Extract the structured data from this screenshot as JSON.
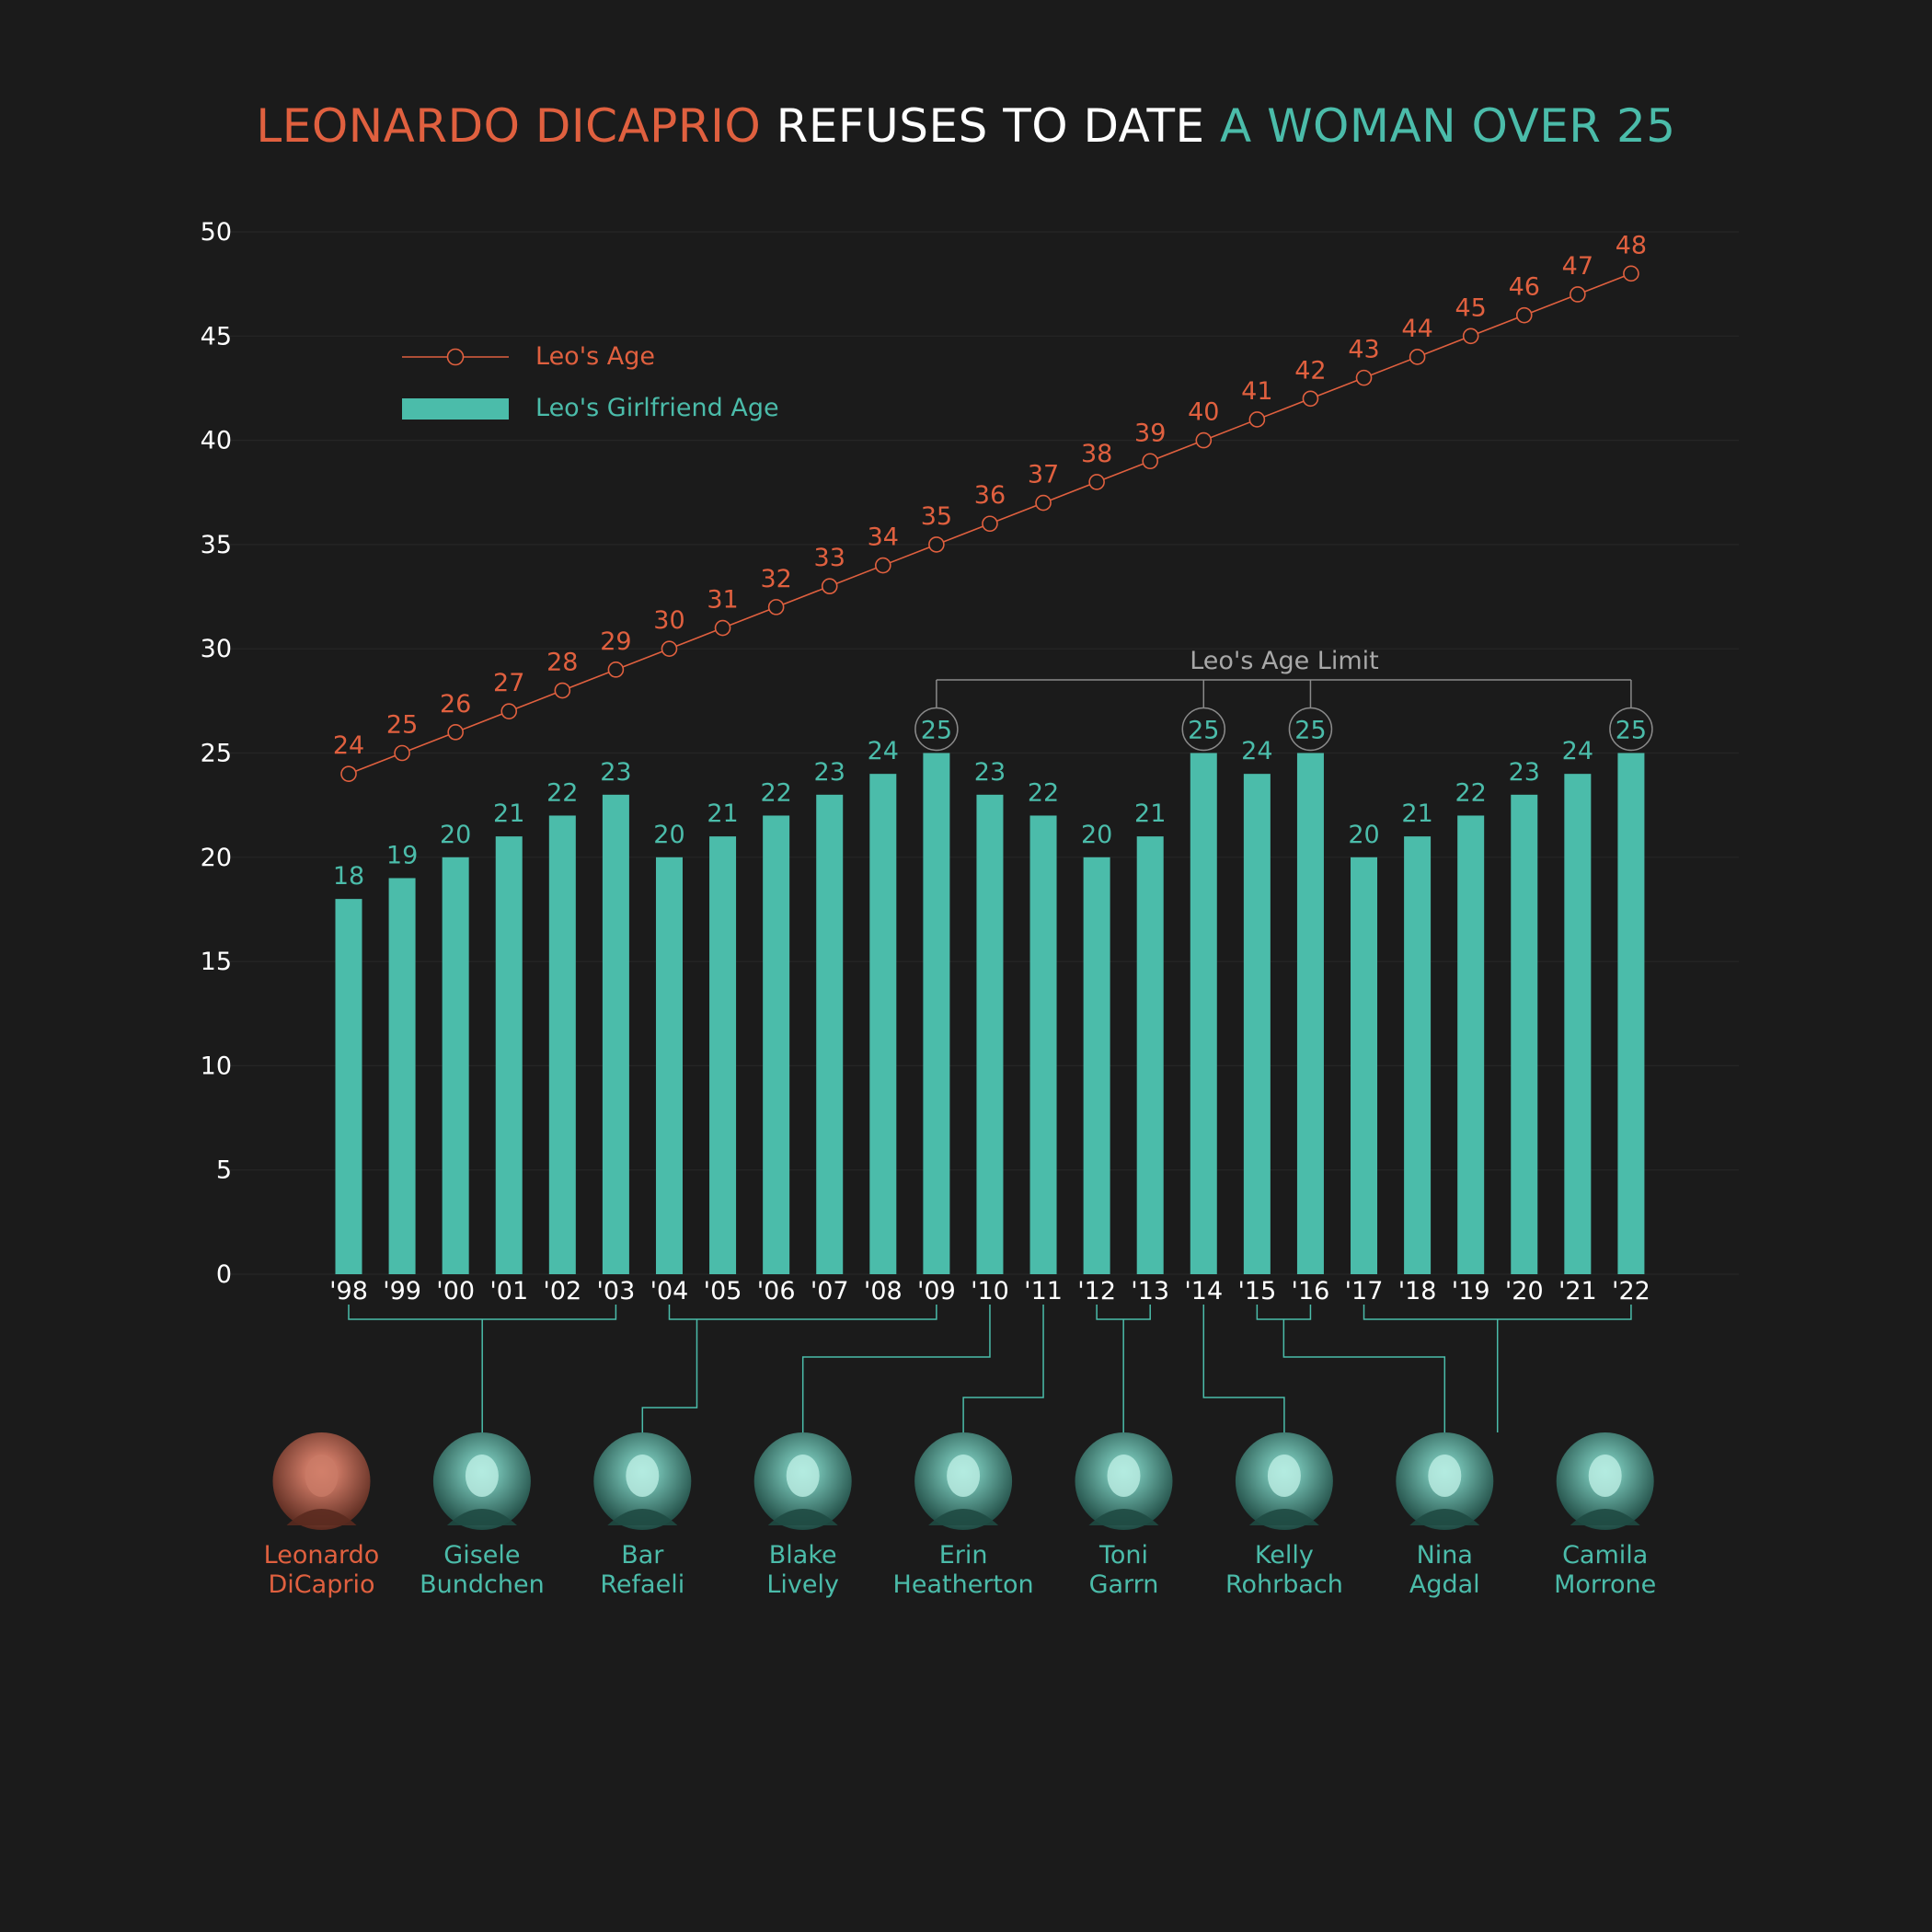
{
  "title": {
    "part1": "LEONARDO DICAPRIO",
    "part2": " REFUSES TO DATE ",
    "part3": "A WOMAN OVER 25"
  },
  "colors": {
    "background": "#1b1b1b",
    "leo": "#e0603f",
    "girlfriend": "#4bbcaa",
    "text": "#ffffff",
    "limit": "#a8a8a8"
  },
  "legend": {
    "leo_age": "Leo's Age",
    "girlfriend_age": "Leo's Girlfriend Age"
  },
  "annotation": {
    "age_limit": "Leo's Age Limit"
  },
  "chart_data": {
    "type": "bar",
    "categories": [
      "'98",
      "'99",
      "'00",
      "'01",
      "'02",
      "'03",
      "'04",
      "'05",
      "'06",
      "'07",
      "'08",
      "'09",
      "'10",
      "'11",
      "'12",
      "'13",
      "'14",
      "'15",
      "'16",
      "'17",
      "'18",
      "'19",
      "'20",
      "'21",
      "'22"
    ],
    "series": [
      {
        "name": "Leo's Girlfriend Age",
        "type": "bar",
        "values": [
          18,
          19,
          20,
          21,
          22,
          23,
          20,
          21,
          22,
          23,
          24,
          25,
          23,
          22,
          20,
          21,
          25,
          24,
          25,
          20,
          21,
          22,
          23,
          24,
          25
        ]
      },
      {
        "name": "Leo's Age",
        "type": "line",
        "values": [
          24,
          25,
          26,
          27,
          28,
          29,
          30,
          31,
          32,
          33,
          34,
          35,
          36,
          37,
          38,
          39,
          40,
          41,
          42,
          43,
          44,
          45,
          46,
          47,
          48
        ]
      }
    ],
    "yticks": [
      0,
      5,
      10,
      15,
      20,
      25,
      30,
      35,
      40,
      45,
      50
    ],
    "ylim": [
      0,
      50
    ],
    "age_limit_highlights": [
      "'09",
      "'14",
      "'16",
      "'22"
    ],
    "legend_position": "top-left",
    "grid": true
  },
  "people": [
    {
      "name": "Leonardo\nDiCaprio",
      "role": "leo",
      "icon": "portrait-leonardo-dicaprio"
    },
    {
      "name": "Gisele\nBundchen",
      "role": "girlfriend",
      "years": [
        "'98",
        "'03"
      ],
      "icon": "portrait-gisele-bundchen"
    },
    {
      "name": "Bar\nRefaeli",
      "role": "girlfriend",
      "years": [
        "'04",
        "'09"
      ],
      "icon": "portrait-bar-refaeli"
    },
    {
      "name": "Blake\nLively",
      "role": "girlfriend",
      "years": [
        "'10"
      ],
      "icon": "portrait-blake-lively"
    },
    {
      "name": "Erin\nHeatherton",
      "role": "girlfriend",
      "years": [
        "'11"
      ],
      "icon": "portrait-erin-heatherton"
    },
    {
      "name": "Toni\nGarrn",
      "role": "girlfriend",
      "years": [
        "'12",
        "'13"
      ],
      "icon": "portrait-toni-garrn"
    },
    {
      "name": "Kelly\nRohrbach",
      "role": "girlfriend",
      "years": [
        "'14"
      ],
      "icon": "portrait-kelly-rohrbach"
    },
    {
      "name": "Nina\nAgdal",
      "role": "girlfriend",
      "years": [
        "'15",
        "'16"
      ],
      "icon": "portrait-nina-agdal"
    },
    {
      "name": "Camila\nMorrone",
      "role": "girlfriend",
      "years": [
        "'17",
        "'22"
      ],
      "icon": "portrait-camila-morrone"
    }
  ]
}
